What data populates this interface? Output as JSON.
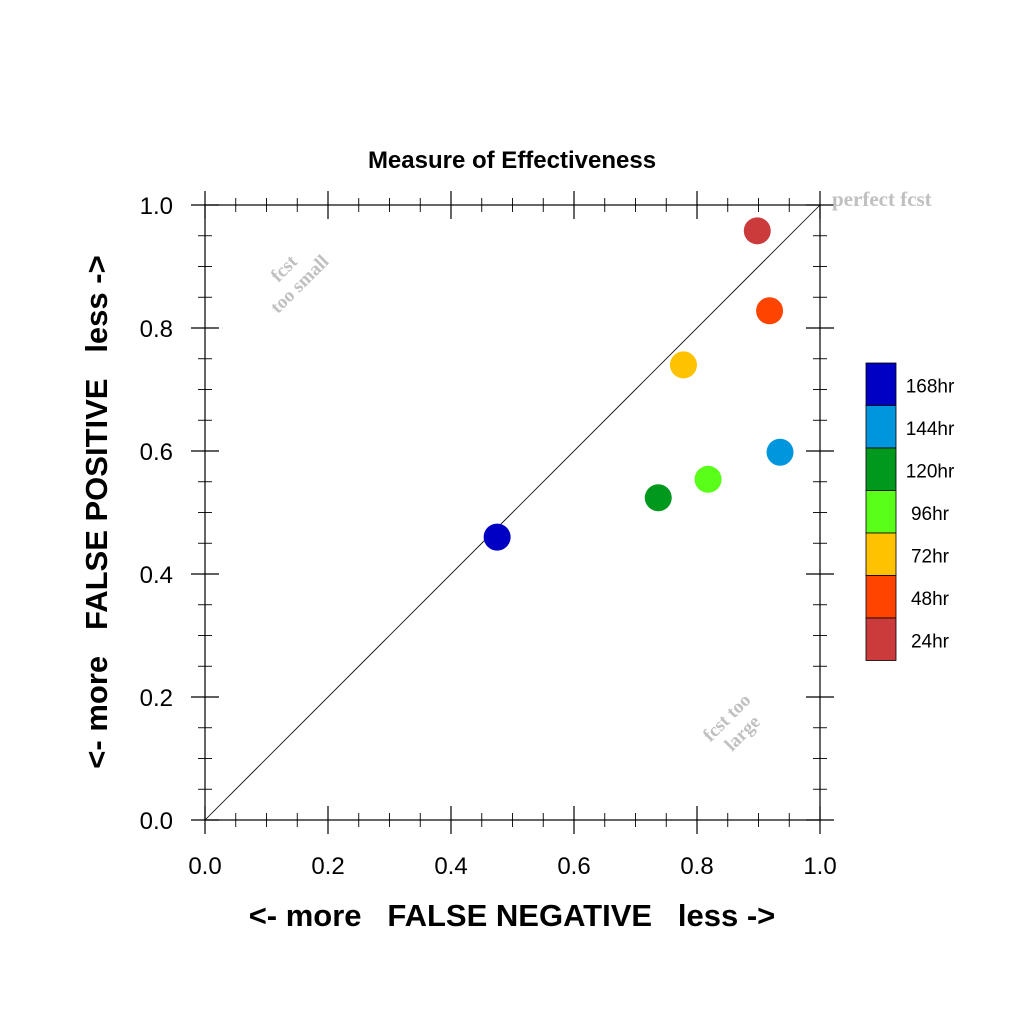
{
  "chart_data": {
    "type": "scatter",
    "title": "Measure of Effectiveness",
    "xlabel": "<- more   FALSE NEGATIVE   less ->",
    "ylabel": "<- more   FALSE POSITIVE   less ->",
    "xlim": [
      0.0,
      1.0
    ],
    "ylim": [
      0.0,
      1.0
    ],
    "xticks": [
      "0.0",
      "0.2",
      "0.4",
      "0.6",
      "0.8",
      "1.0"
    ],
    "yticks": [
      "0.0",
      "0.2",
      "0.4",
      "0.6",
      "0.8",
      "1.0"
    ],
    "grid": false,
    "reference_line": {
      "from": [
        0.0,
        0.0
      ],
      "to": [
        1.0,
        1.0
      ],
      "label": "perfect fcst"
    },
    "annotations": [
      {
        "lines": [
          "fcst",
          "too small"
        ],
        "x": 0.14,
        "y": 0.885
      },
      {
        "lines": [
          "fcst too",
          "large"
        ],
        "x": 0.86,
        "y": 0.155
      }
    ],
    "series": [
      {
        "name": "168hr",
        "color": "#0000c4",
        "x": 0.475,
        "y": 0.46
      },
      {
        "name": "144hr",
        "color": "#0096dd",
        "x": 0.935,
        "y": 0.598
      },
      {
        "name": "120hr",
        "color": "#00991e",
        "x": 0.737,
        "y": 0.524
      },
      {
        "name": "96hr",
        "color": "#5aff19",
        "x": 0.818,
        "y": 0.554
      },
      {
        "name": "72hr",
        "color": "#ffc200",
        "x": 0.778,
        "y": 0.74
      },
      {
        "name": "48hr",
        "color": "#ff4400",
        "x": 0.918,
        "y": 0.828
      },
      {
        "name": "24hr",
        "color": "#cc3b3b",
        "x": 0.898,
        "y": 0.958
      }
    ],
    "legend": "right"
  }
}
